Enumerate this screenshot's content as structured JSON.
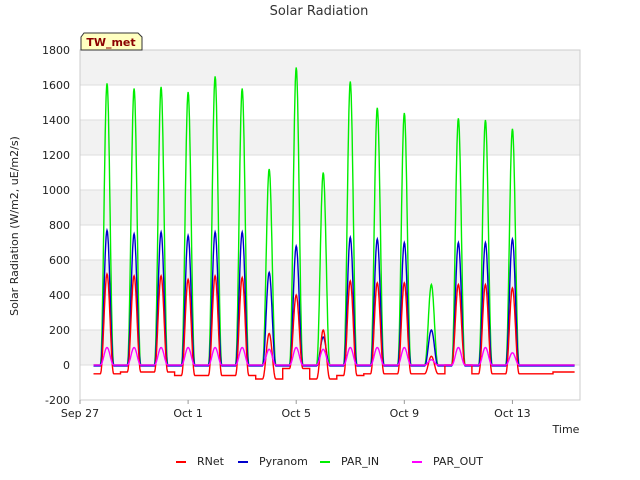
{
  "chart_data": {
    "type": "line",
    "title": "Solar Radiation",
    "xlabel": "Time",
    "ylabel": "Solar Radiation (W/m2, uE/m2/s)",
    "tag": "TW_met",
    "ylim": [
      -200,
      1800
    ],
    "yticks": [
      -200,
      0,
      200,
      400,
      600,
      800,
      1000,
      1200,
      1400,
      1600,
      1800
    ],
    "xlim": [
      0,
      18.5
    ],
    "xticks": [
      {
        "x": 0,
        "label": "Sep 27"
      },
      {
        "x": 4,
        "label": "Oct 1"
      },
      {
        "x": 8,
        "label": "Oct 5"
      },
      {
        "x": 12,
        "label": "Oct 9"
      },
      {
        "x": 16,
        "label": "Oct 13"
      }
    ],
    "grid": true,
    "legend_position": "bottom",
    "day_starts": [
      0.5,
      1.5,
      2.5,
      3.5,
      4.5,
      5.5,
      6.5,
      7.5,
      8.5,
      9.5,
      10.5,
      11.5,
      12.5,
      13.5,
      14.5,
      15.5,
      16.5,
      17.5
    ],
    "series": [
      {
        "name": "RNet",
        "color": "#ff0000",
        "night_values": [
          -50,
          -40,
          -40,
          -60,
          -60,
          -60,
          -80,
          -20,
          -80,
          -60,
          -50,
          -50,
          -50,
          0,
          -50,
          -50,
          -50,
          -40
        ],
        "day_peaks": [
          520,
          510,
          510,
          490,
          510,
          500,
          180,
          400,
          200,
          480,
          470,
          470,
          50,
          460,
          460,
          440,
          0,
          0
        ]
      },
      {
        "name": "Pyranom",
        "color": "#0000cc",
        "night_values": [
          -5,
          -5,
          -5,
          -5,
          -5,
          -5,
          -5,
          -5,
          -5,
          -5,
          -5,
          -5,
          -5,
          -5,
          -5,
          -5,
          -5,
          -5
        ],
        "day_peaks": [
          770,
          750,
          760,
          740,
          760,
          760,
          530,
          680,
          160,
          730,
          720,
          700,
          200,
          700,
          700,
          720,
          0,
          0
        ]
      },
      {
        "name": "PAR_IN",
        "color": "#00ee00",
        "night_values": [
          0,
          0,
          0,
          0,
          0,
          0,
          0,
          0,
          0,
          0,
          0,
          0,
          0,
          0,
          0,
          0,
          0,
          0
        ],
        "day_peaks": [
          1610,
          1580,
          1590,
          1560,
          1650,
          1580,
          1120,
          1700,
          1100,
          1620,
          1470,
          1440,
          460,
          1410,
          1400,
          1350,
          0,
          0
        ]
      },
      {
        "name": "PAR_OUT",
        "color": "#ff00ff",
        "night_values": [
          0,
          0,
          0,
          0,
          0,
          0,
          0,
          0,
          0,
          0,
          0,
          0,
          0,
          0,
          0,
          0,
          0,
          0
        ],
        "day_peaks": [
          100,
          100,
          100,
          100,
          100,
          100,
          90,
          100,
          90,
          100,
          100,
          100,
          30,
          100,
          100,
          70,
          0,
          0
        ]
      }
    ]
  }
}
